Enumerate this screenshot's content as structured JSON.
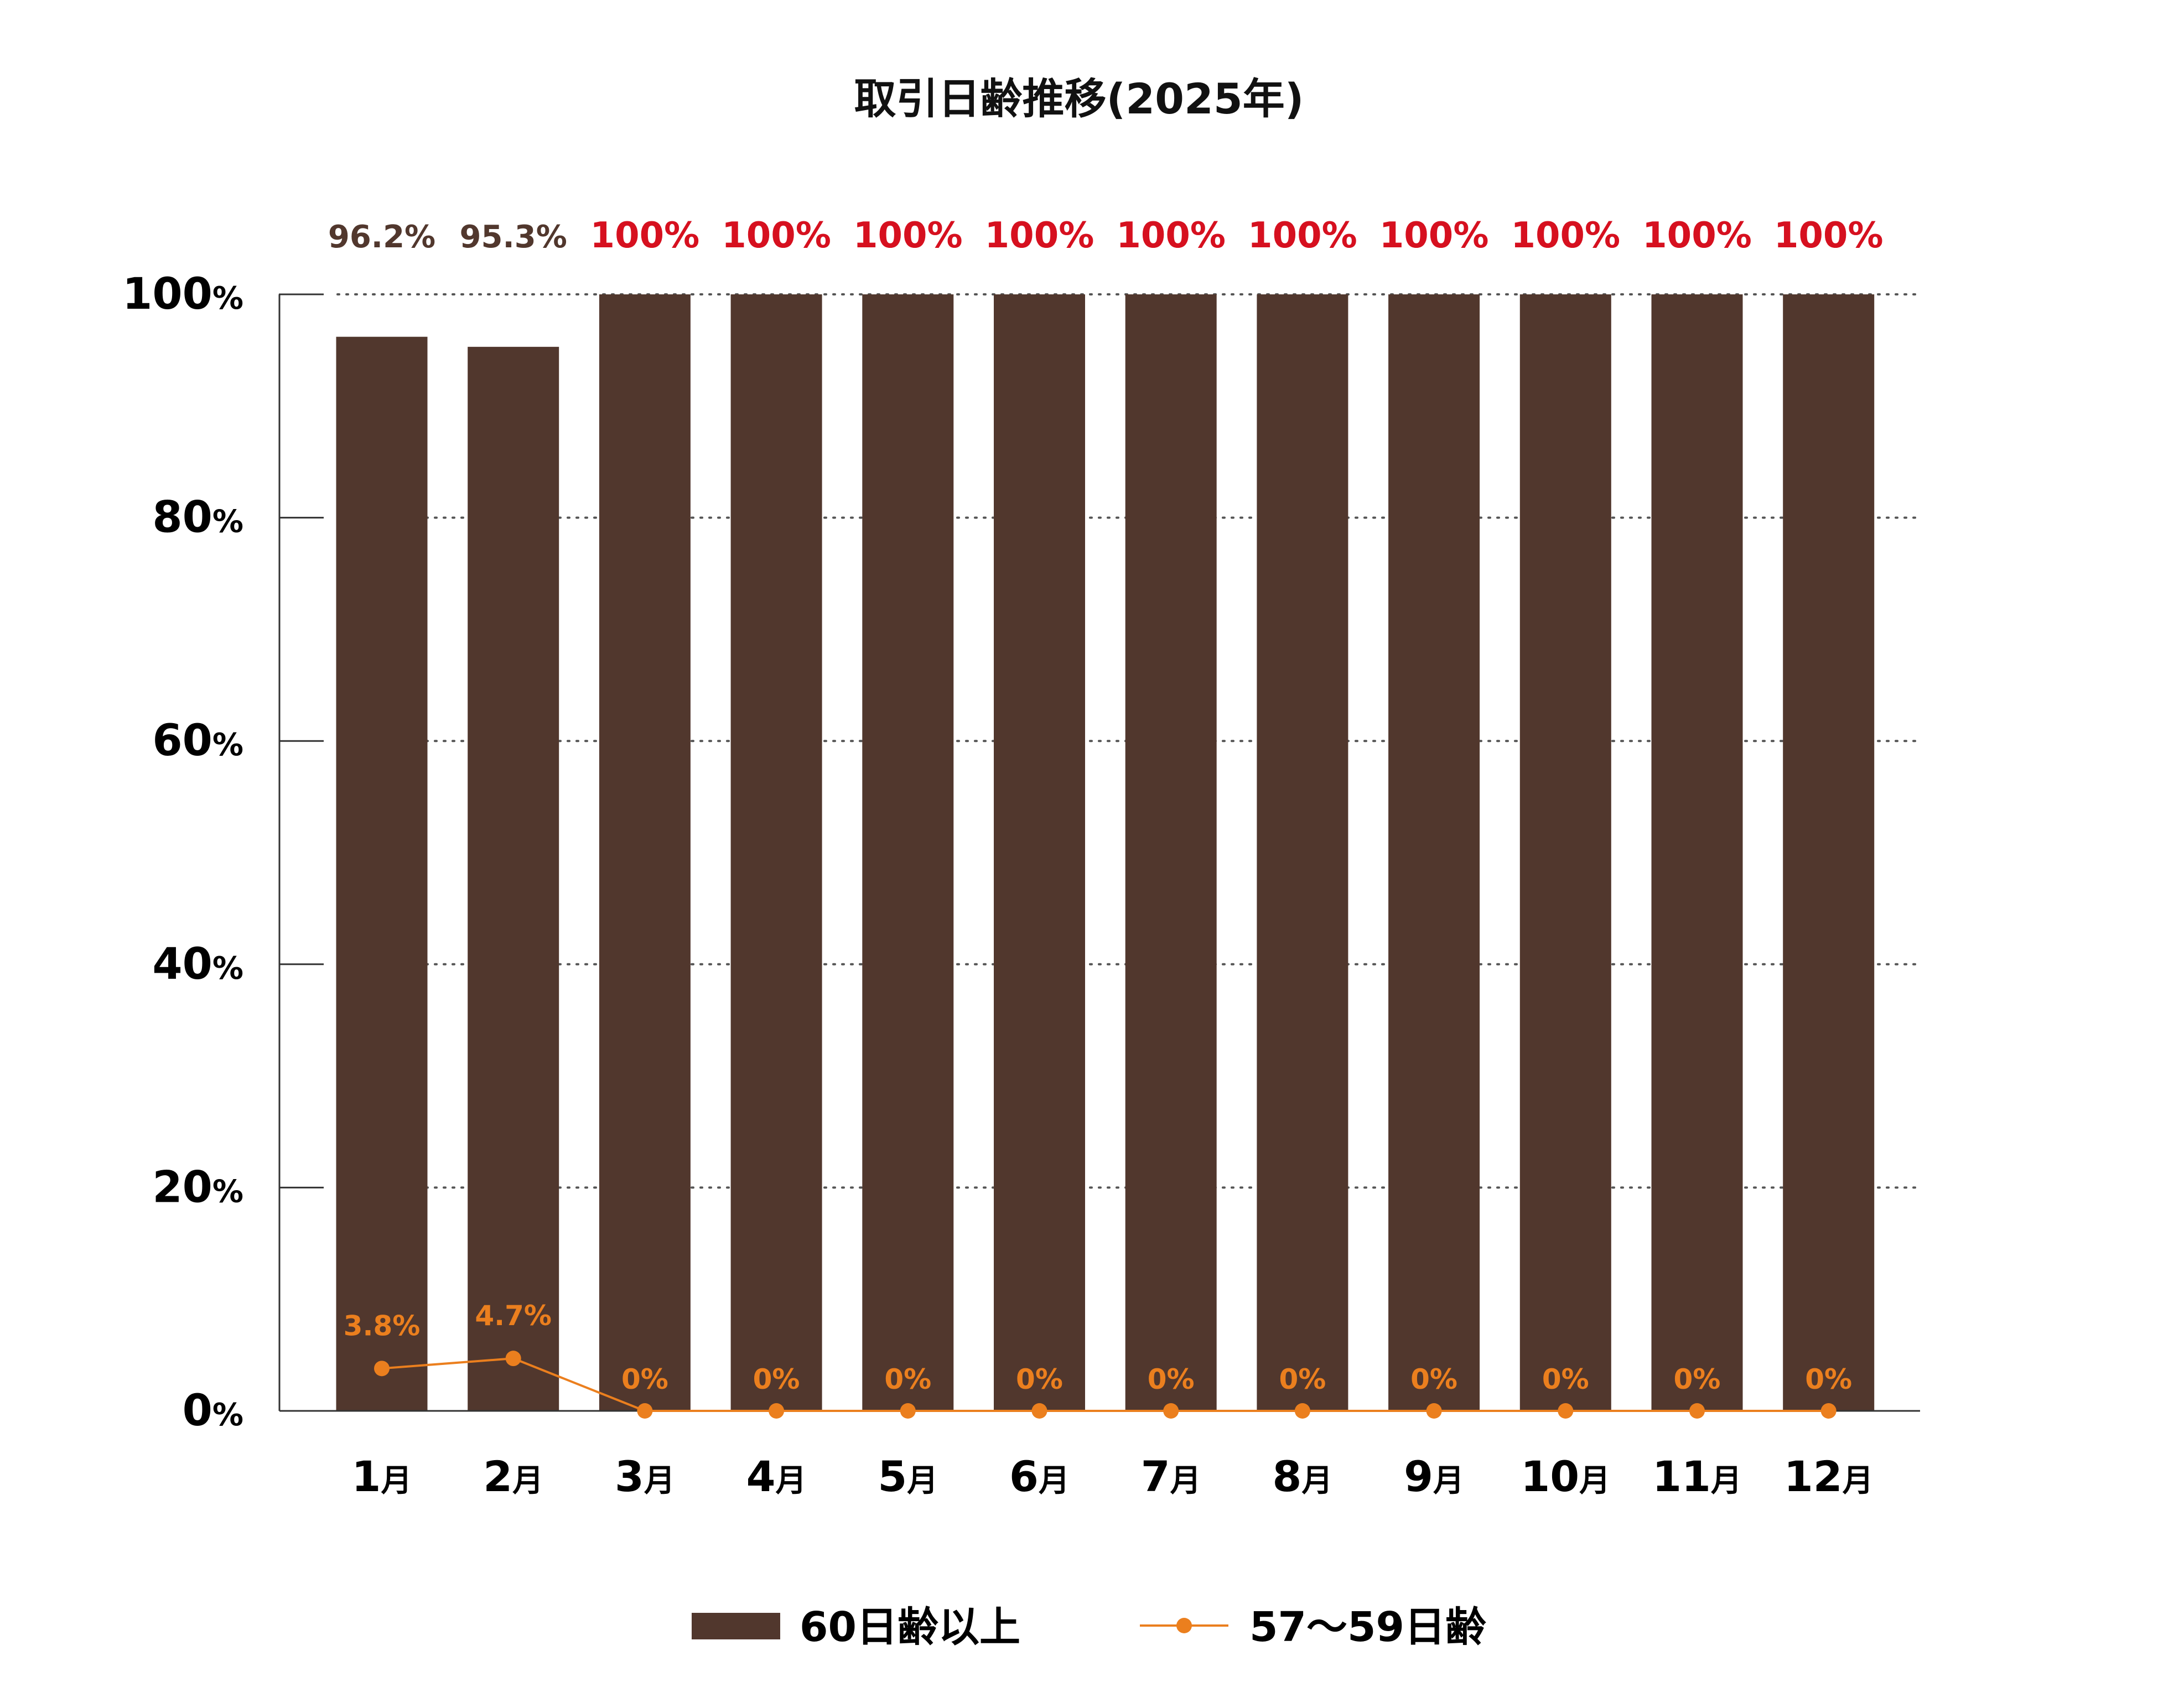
{
  "chart_data": {
    "type": "bar",
    "title": "取引日齢推移(2025年)",
    "categories": [
      "1月",
      "2月",
      "3月",
      "4月",
      "5月",
      "6月",
      "7月",
      "8月",
      "9月",
      "10月",
      "11月",
      "12月"
    ],
    "series": [
      {
        "name": "60日齢以上",
        "kind": "bar",
        "color": "#51372d",
        "values": [
          96.2,
          95.3,
          100,
          100,
          100,
          100,
          100,
          100,
          100,
          100,
          100,
          100
        ],
        "labels": [
          "96.2%",
          "95.3%",
          "100%",
          "100%",
          "100%",
          "100%",
          "100%",
          "100%",
          "100%",
          "100%",
          "100%",
          "100%"
        ]
      },
      {
        "name": "57〜59日齢",
        "kind": "line",
        "color": "#eb7f1e",
        "values": [
          3.8,
          4.7,
          0,
          0,
          0,
          0,
          0,
          0,
          0,
          0,
          0,
          0
        ],
        "labels": [
          "3.8%",
          "4.7%",
          "0%",
          "0%",
          "0%",
          "0%",
          "0%",
          "0%",
          "0%",
          "0%",
          "0%",
          "0%"
        ]
      }
    ],
    "ylim": [
      0,
      100
    ],
    "yticks": [
      {
        "value": 0,
        "num": "0",
        "unit": "%"
      },
      {
        "value": 20,
        "num": "20",
        "unit": "%"
      },
      {
        "value": 40,
        "num": "40",
        "unit": "%"
      },
      {
        "value": 60,
        "num": "60",
        "unit": "%"
      },
      {
        "value": 80,
        "num": "80",
        "unit": "%"
      },
      {
        "value": 100,
        "num": "100",
        "unit": "%"
      }
    ],
    "grid": "dotted horizontal",
    "legend_position": "bottom",
    "label_colors": {
      "bar_label_normal": "#51372d",
      "bar_label_full": "#d6101f",
      "line_label": "#eb7f1e",
      "axis_text": "#000000",
      "axis_line": "#333333"
    }
  }
}
